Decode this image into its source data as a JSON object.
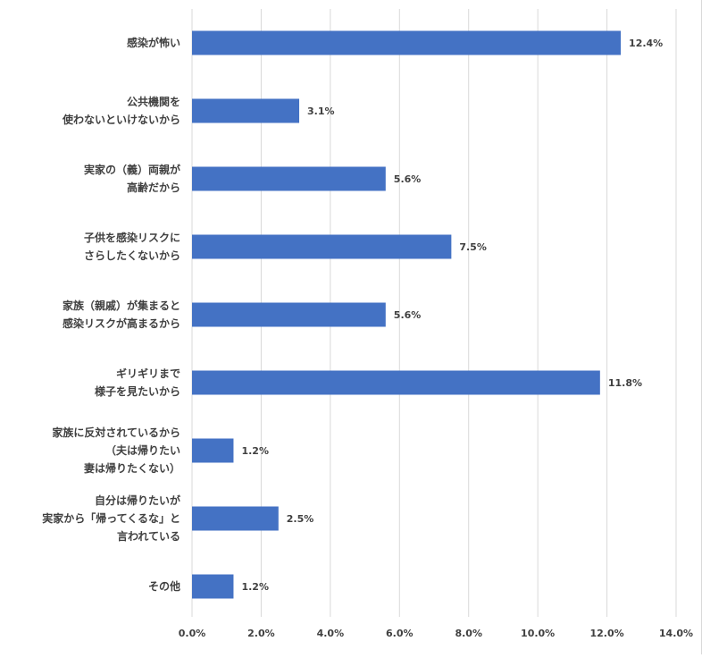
{
  "chart_data": {
    "type": "bar",
    "orientation": "horizontal",
    "categories": [
      [
        "感染が怖い"
      ],
      [
        "公共機関を",
        "使わないといけないから"
      ],
      [
        "実家の（義）両親が",
        "高齢だから"
      ],
      [
        "子供を感染リスクに",
        "さらしたくないから"
      ],
      [
        "家族（親戚）が集まると",
        "感染リスクが高まるから"
      ],
      [
        "ギリギリまで",
        "様子を見たいから"
      ],
      [
        "家族に反対されているから",
        "（夫は帰りたい",
        "妻は帰りたくない）"
      ],
      [
        "自分は帰りたいが",
        "実家から「帰ってくるな」と",
        "言われている"
      ],
      [
        "その他"
      ]
    ],
    "values": [
      12.4,
      3.1,
      5.6,
      7.5,
      5.6,
      11.8,
      1.2,
      2.5,
      1.2
    ],
    "data_labels": [
      "12.4%",
      "3.1%",
      "5.6%",
      "7.5%",
      "5.6%",
      "11.8%",
      "1.2%",
      "2.5%",
      "1.2%"
    ],
    "x_ticks": [
      "0.0%",
      "2.0%",
      "4.0%",
      "6.0%",
      "8.0%",
      "10.0%",
      "12.0%",
      "14.0%"
    ],
    "xlim": [
      0,
      14
    ],
    "grid": true,
    "bar_color": "#4472c4",
    "grid_color": "#d9d9d9",
    "text_color": "#404040"
  }
}
